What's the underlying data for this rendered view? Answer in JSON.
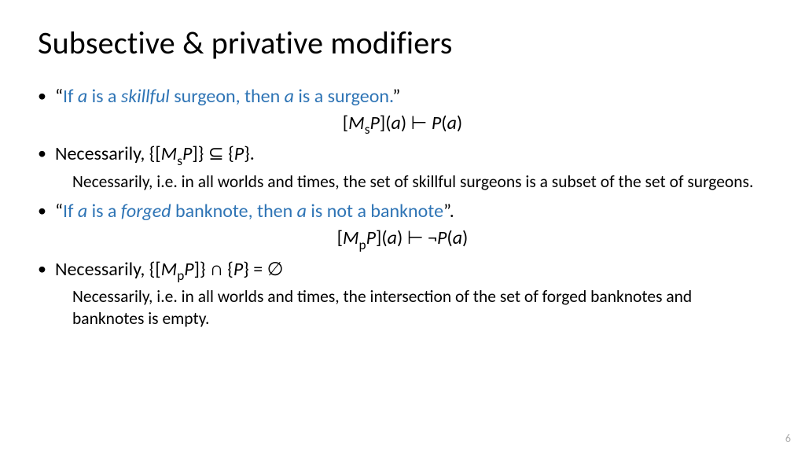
{
  "title": "Subsective & privative modifiers",
  "accent_color": "#2e74b5",
  "text_color": "#000000",
  "background_color": "#ffffff",
  "page_number": "6",
  "bullets": {
    "b1": {
      "ldq": "“",
      "link_pre": "If ",
      "link_a1": "a",
      "link_mid1": " is a ",
      "link_skill": "skillful",
      "link_mid2": " surgeon, then ",
      "link_a2": "a",
      "link_post": " is a surgeon.",
      "rdq": "”"
    },
    "f1": {
      "lb": "[",
      "M": "M",
      "s": "s",
      "P1": "P",
      "rb_lp": "](",
      "a1": "a",
      "rp_sp": ") ",
      "turn": "⊢",
      "sp": " ",
      "P2": "P",
      "lp": "(",
      "a2": "a",
      "rp": ")"
    },
    "b2": {
      "pre": "Necessarily, {[",
      "M": "M",
      "s": "s",
      "P": "P",
      "mid": "]} ",
      "sub": "⊆",
      "post_lb": " {",
      "P2": "P",
      "post_rb": "}."
    },
    "i1": "Necessarily, i.e. in all worlds and times, the set of skillful surgeons is a subset of the set of surgeons.",
    "b3": {
      "ldq": "“",
      "link_pre": "If ",
      "link_a1": "a",
      "link_mid1": " is a ",
      "link_forged": "forged",
      "link_mid2": " banknote, then ",
      "link_a2": "a",
      "link_post": " is not a banknote",
      "rdq": "”."
    },
    "f2": {
      "lb": "[",
      "M": "M",
      "p": "p",
      "P1": "P",
      "rb_lp": "](",
      "a1": "a",
      "rp_sp": ") ",
      "turn": "⊢",
      "sp": " ",
      "neg": "¬",
      "P2": "P",
      "lp": "(",
      "a2": "a",
      "rp": ")"
    },
    "b4": {
      "pre": "Necessarily, {[",
      "M": "M",
      "p": "p",
      "P": "P",
      "mid": "]} ",
      "cap": "∩",
      "post_lb": " {",
      "P2": "P",
      "post_eq": "} = ",
      "empty": "∅"
    },
    "i2": "Necessarily, i.e. in all worlds and times, the intersection of the set of forged banknotes and banknotes is empty."
  }
}
